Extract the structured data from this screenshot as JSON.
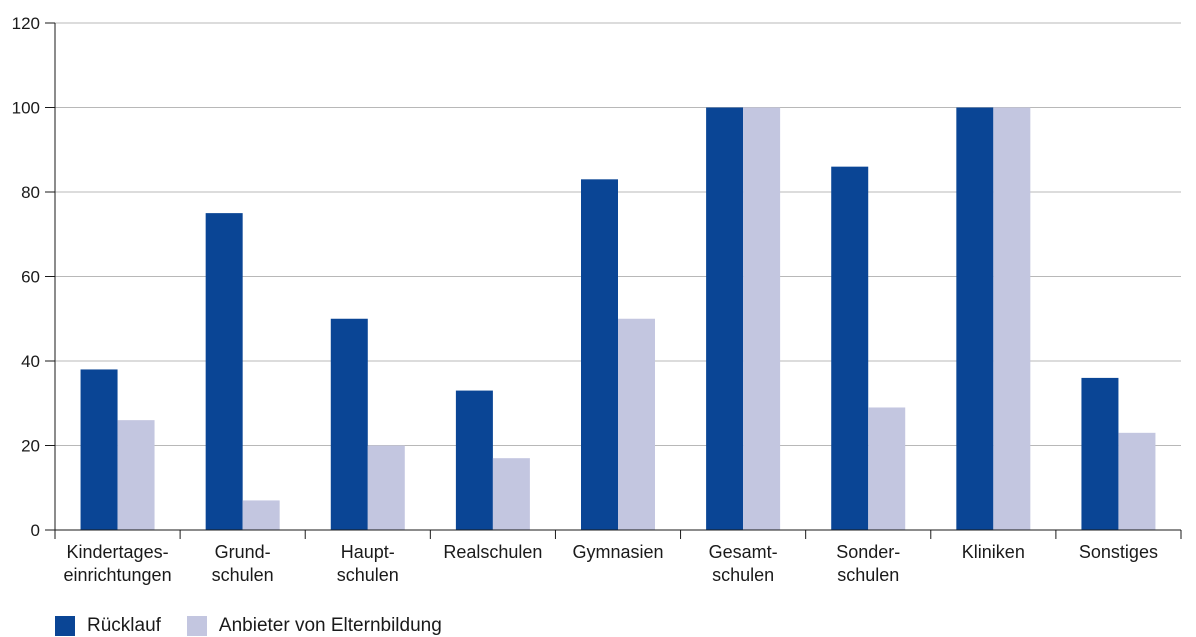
{
  "chart_data": {
    "type": "bar",
    "categories": [
      [
        "Kindertages-",
        "einrichtungen"
      ],
      [
        "Grund-",
        "schulen"
      ],
      [
        "Haupt-",
        "schulen"
      ],
      [
        "Realschulen"
      ],
      [
        "Gymnasien"
      ],
      [
        "Gesamt-",
        "schulen"
      ],
      [
        "Sonder-",
        "schulen"
      ],
      [
        "Kliniken"
      ],
      [
        "Sonstiges"
      ]
    ],
    "series": [
      {
        "name": "Rücklauf",
        "color": "#0a4595",
        "values": [
          38,
          75,
          50,
          33,
          83,
          100,
          86,
          100,
          36
        ]
      },
      {
        "name": "Anbieter von Elternbildung",
        "color": "#c3c6e0",
        "values": [
          26,
          7,
          20,
          17,
          50,
          100,
          29,
          100,
          23
        ]
      }
    ],
    "ylim": [
      0,
      120
    ],
    "yticks": [
      0,
      20,
      40,
      60,
      80,
      100,
      120
    ],
    "grid": true,
    "legend_position": "bottom-left",
    "gridline_color": "#b8b8b8"
  }
}
